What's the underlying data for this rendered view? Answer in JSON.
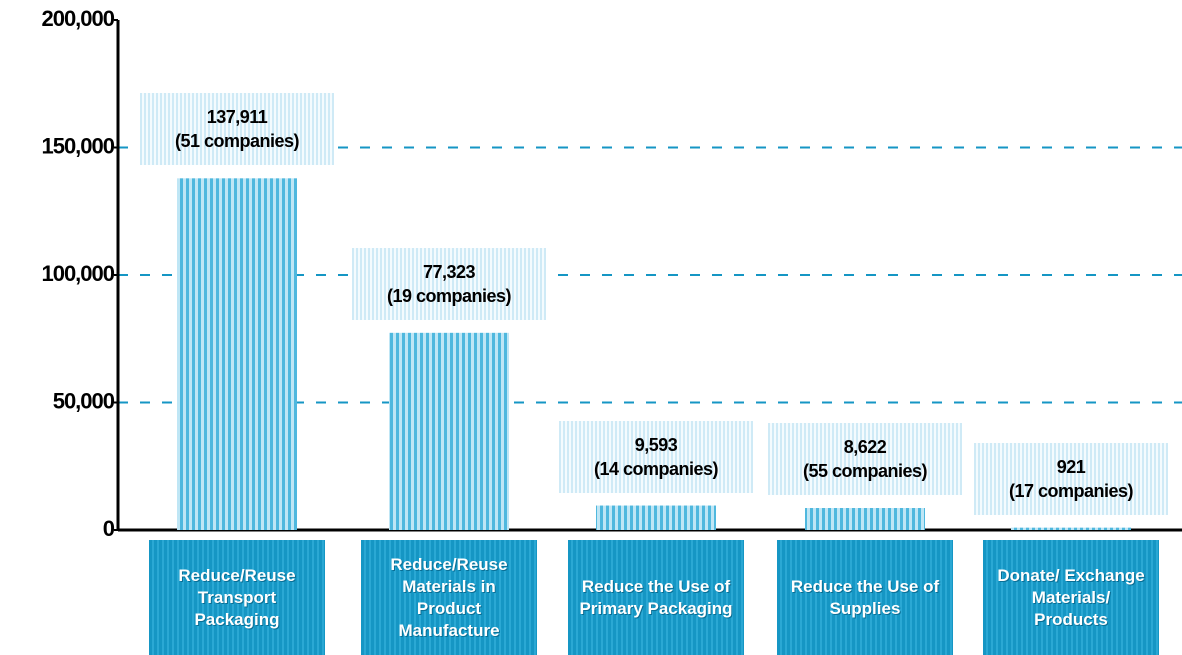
{
  "chart_data": {
    "type": "bar",
    "categories": [
      "Reduce/Reuse Transport Packaging",
      "Reduce/Reuse Materials in Product Manufacture",
      "Reduce the Use of Primary Packaging",
      "Reduce the Use of Supplies",
      "Donate/ Exchange Materials/ Products"
    ],
    "values": [
      137911,
      77323,
      9593,
      8622,
      921
    ],
    "value_labels": [
      "137,911",
      "77,323",
      "9,593",
      "8,622",
      "921"
    ],
    "companies_labels": [
      "(51 companies)",
      "(19 companies)",
      "(14 companies)",
      "(55 companies)",
      "(17 companies)"
    ],
    "color": "#5bbfe0",
    "ylim": [
      0,
      200000
    ],
    "yticks": [
      0,
      {
        "value": 50000,
        "label": "50,000"
      },
      {
        "value": 100000,
        "label": "100,000"
      },
      {
        "value": 150000,
        "label": "150,000"
      },
      {
        "value": 200000,
        "label": "200,000"
      }
    ],
    "grid": true
  }
}
